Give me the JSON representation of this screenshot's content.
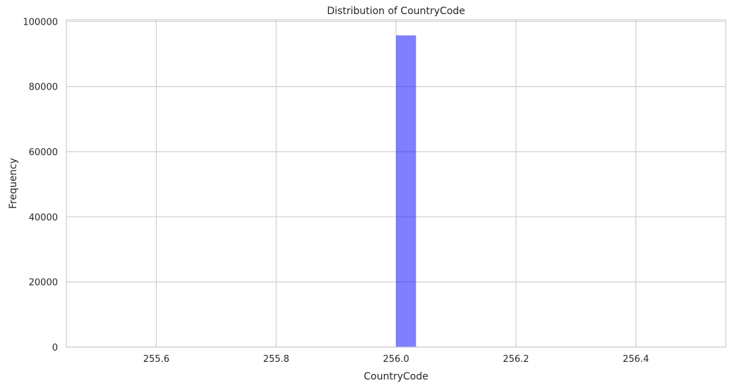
{
  "chart_data": {
    "type": "bar",
    "title": "Distribution of CountryCode",
    "xlabel": "CountryCode",
    "ylabel": "Frequency",
    "x_ticks": [
      "255.6",
      "255.8",
      "256.0",
      "256.2",
      "256.4"
    ],
    "y_ticks": [
      "0",
      "20000",
      "40000",
      "60000",
      "80000",
      "100000"
    ],
    "xlim": [
      255.45,
      256.55
    ],
    "ylim": [
      0,
      100500
    ],
    "grid": true,
    "bar_color": "#0000ff",
    "bar_opacity": 0.5,
    "bins": [
      {
        "x0": 256.0,
        "x1": 256.0333,
        "count": 95700
      }
    ]
  }
}
